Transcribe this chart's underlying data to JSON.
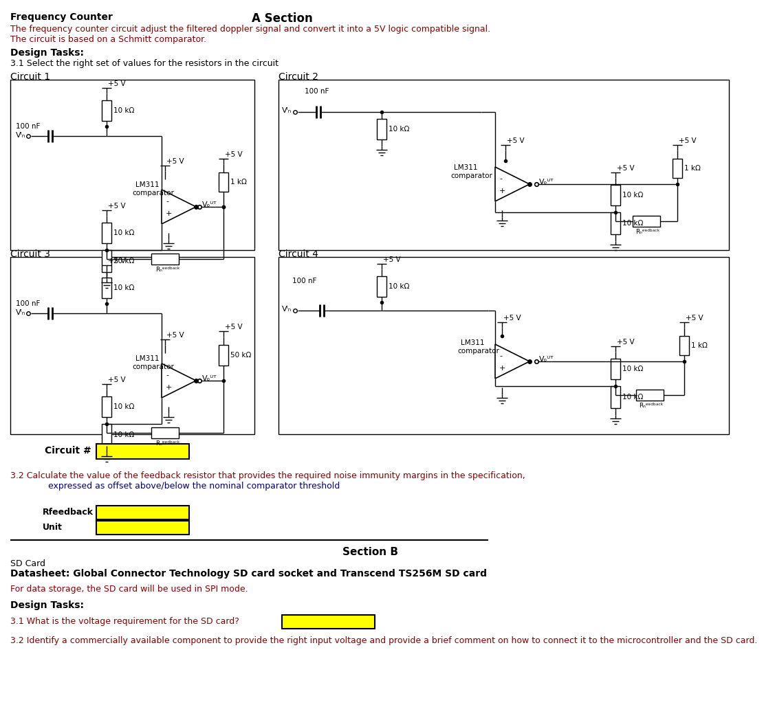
{
  "title_left": "Frequency Counter",
  "title_center": "A Section",
  "bg_color": "#ffffff",
  "yellow_fill": "#FFFF00",
  "desc_color": "#8B0000",
  "task_color": "#000080",
  "black": "#000000",
  "desc_line1": "The frequency counter circuit adjust the filtered doppler signal and convert it into a 5V logic compatible signal.",
  "desc_line2": "The circuit is based on a Schmitt comparator.",
  "task32_text1": "3.2 Calculate the value of the feedback resistor that provides the required noise immunity margins in the specification,",
  "task32_text2": "expressed as offset above/below the nominal comparator threshold",
  "section_b_title": "Section B",
  "sd_card_title": "SD Card",
  "sd_card_datasheet": "Datasheet: Global Connector Technology SD card socket and Transcend TS256M SD card",
  "sd_spi_text": "For data storage, the SD card will be used in SPI mode.",
  "task_b31": "3.1 What is the voltage requirement for the SD card?",
  "task_b32": "3.2 Identify a commercially available component to provide the right input voltage and provide a brief comment on how to connect it to the microcontroller and the SD card."
}
